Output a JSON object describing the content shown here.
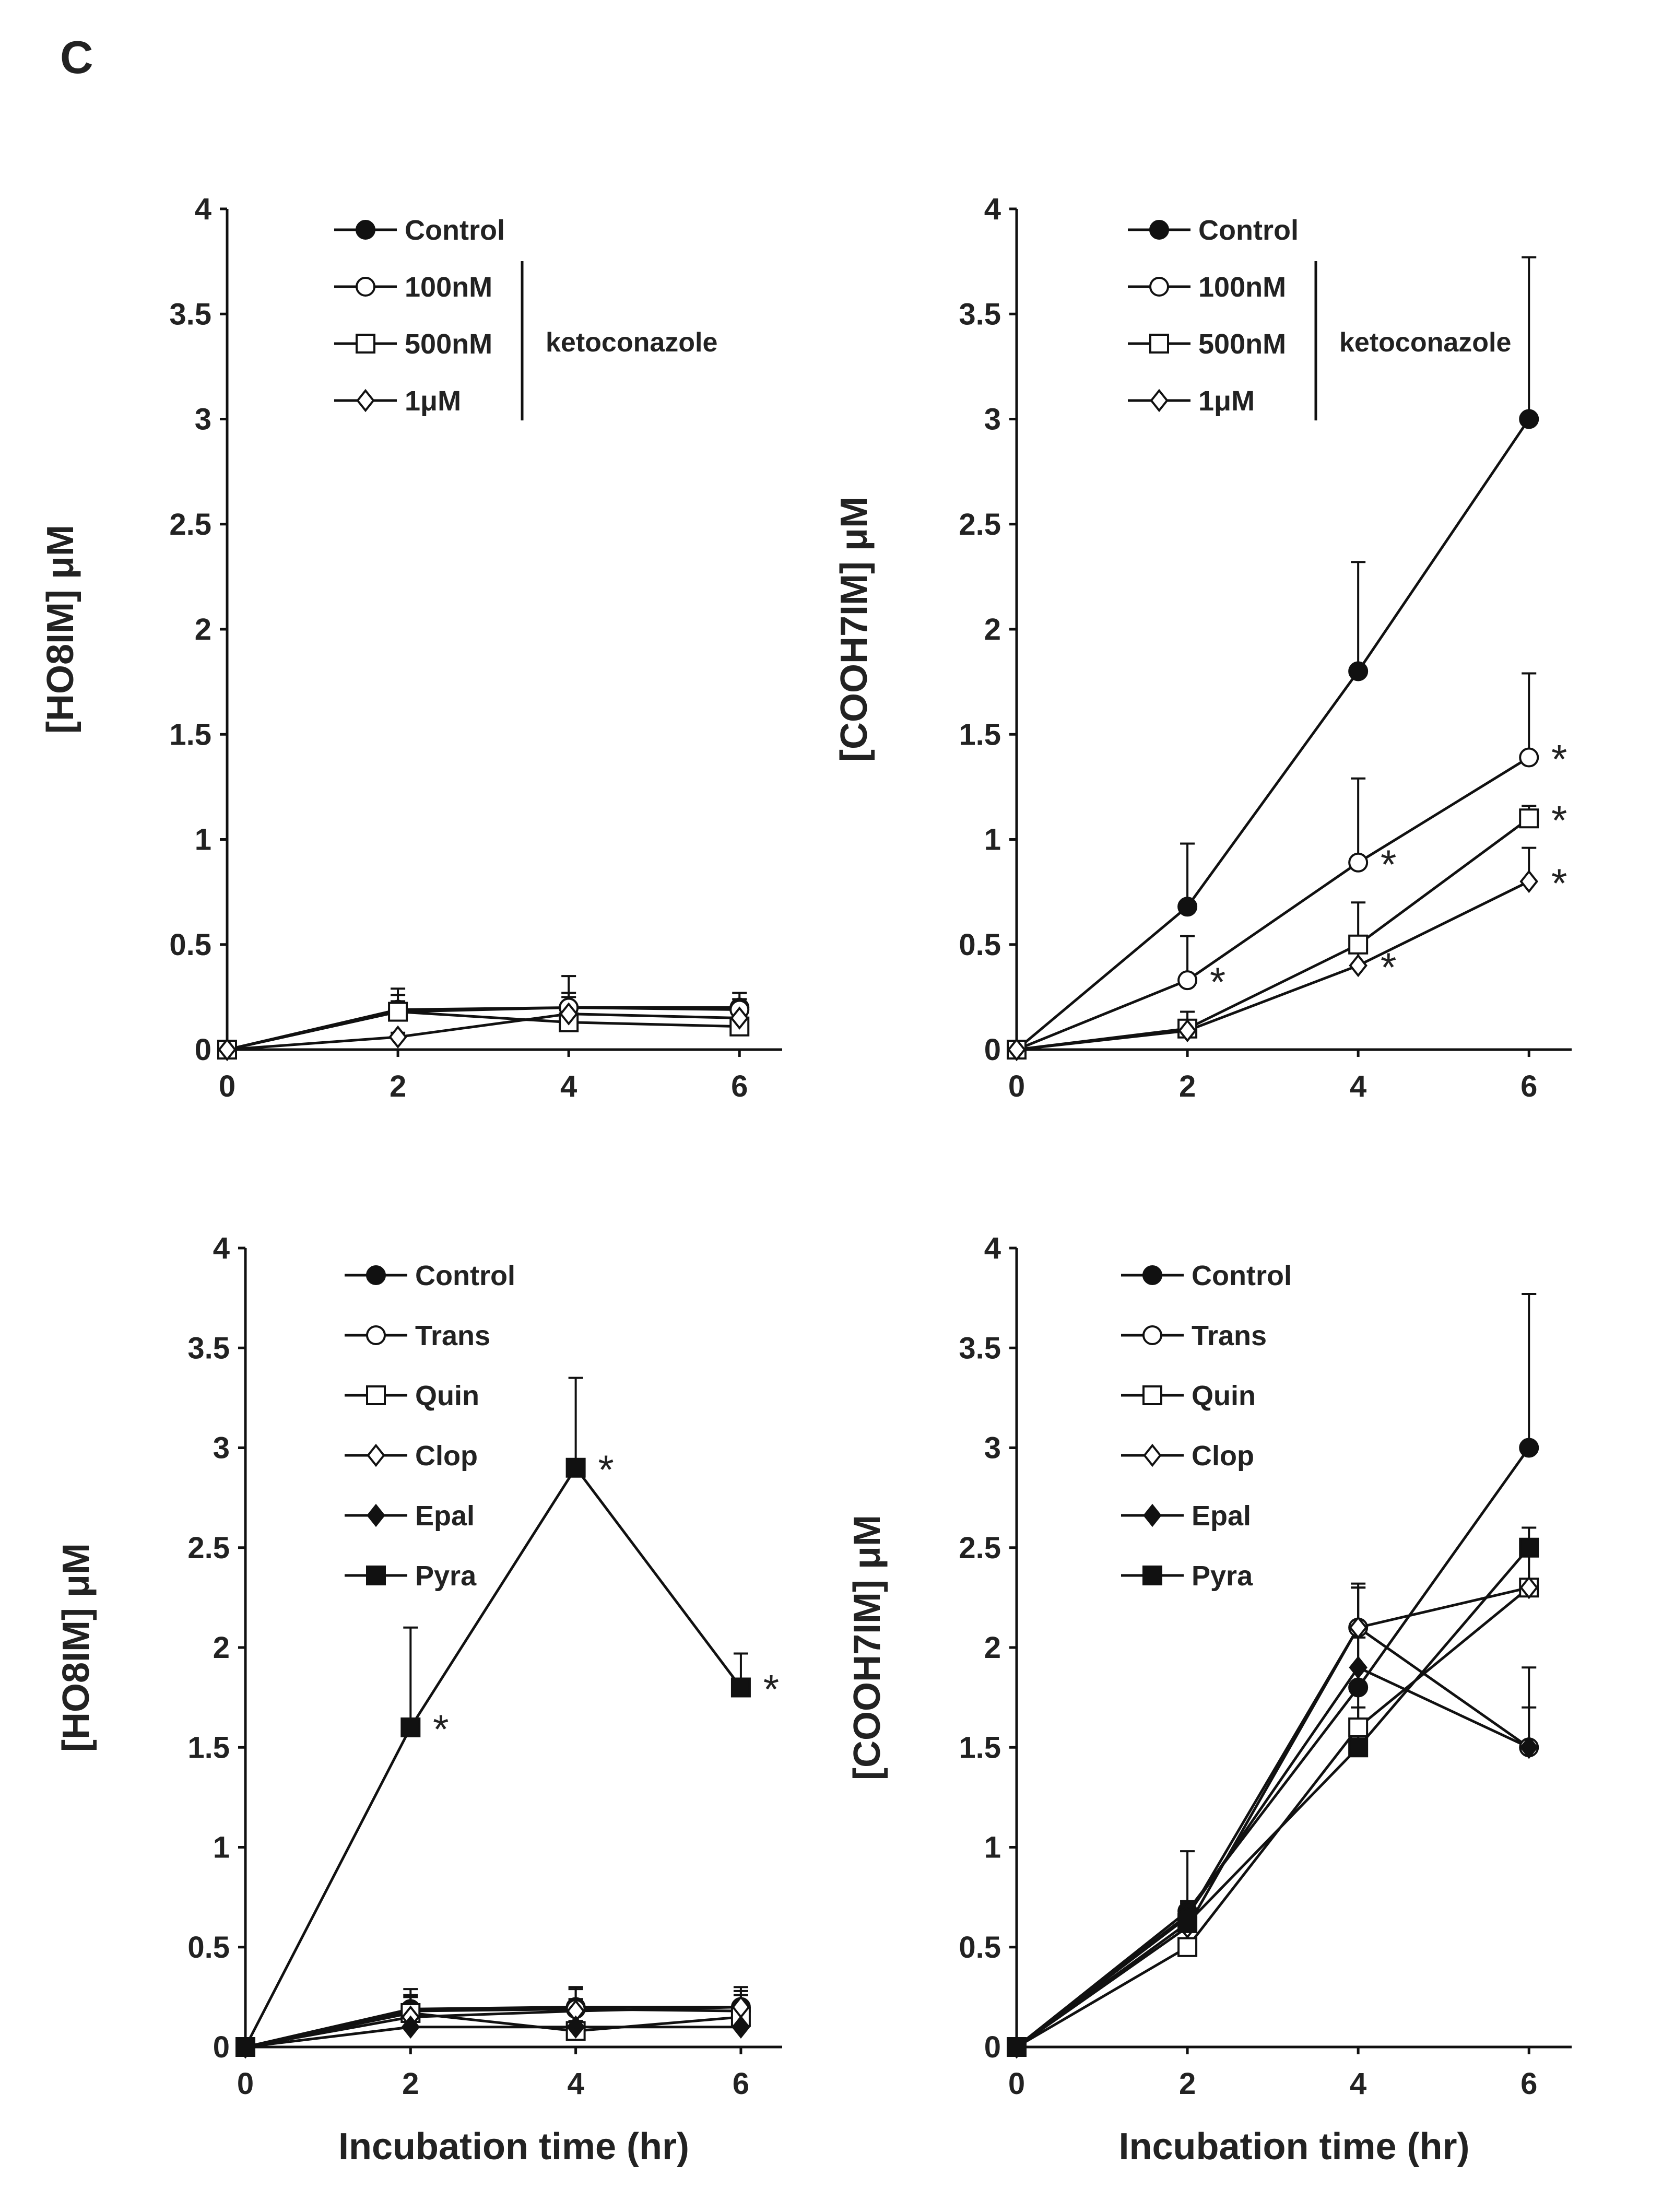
{
  "panel_letter": "C",
  "chart_data": [
    {
      "type": "line",
      "title": "",
      "xlabel": "",
      "ylabel": "[HO8IM] μM",
      "x": [
        0,
        2,
        4,
        6
      ],
      "xlim": [
        0,
        6.5
      ],
      "xticks": [
        "0",
        "2",
        "4",
        "6"
      ],
      "ylim": [
        0,
        4
      ],
      "yticks": [
        "0",
        "0.5",
        "1",
        "1.5",
        "2",
        "2.5",
        "3",
        "3.5",
        "4"
      ],
      "legend_group_label": "ketoconazole",
      "series": [
        {
          "name": "Control",
          "marker": "filled-circle",
          "values": [
            0,
            0.19,
            0.2,
            0.2
          ],
          "err": [
            0,
            0.1,
            0.15,
            0.07
          ],
          "stars": [
            false,
            false,
            false,
            false
          ]
        },
        {
          "name": "100nM",
          "marker": "open-circle",
          "values": [
            0,
            0.18,
            0.2,
            0.19
          ],
          "err": [
            0,
            0.05,
            0.05,
            0.05
          ],
          "stars": [
            false,
            false,
            false,
            false
          ]
        },
        {
          "name": "500nM",
          "marker": "open-square",
          "values": [
            0,
            0.18,
            0.13,
            0.11
          ],
          "err": [
            0,
            0.08,
            0.05,
            0.03
          ],
          "stars": [
            false,
            false,
            false,
            false
          ]
        },
        {
          "name": "1μM",
          "marker": "open-diamond",
          "values": [
            0,
            0.06,
            0.17,
            0.15
          ],
          "err": [
            0,
            0.02,
            0.1,
            0.04
          ],
          "stars": [
            false,
            false,
            false,
            false
          ]
        }
      ]
    },
    {
      "type": "line",
      "title": "",
      "xlabel": "",
      "ylabel": "[COOH7IM] μM",
      "x": [
        0,
        2,
        4,
        6
      ],
      "xlim": [
        0,
        6.5
      ],
      "xticks": [
        "0",
        "2",
        "4",
        "6"
      ],
      "ylim": [
        0,
        4
      ],
      "yticks": [
        "0",
        "0.5",
        "1",
        "1.5",
        "2",
        "2.5",
        "3",
        "3.5",
        "4"
      ],
      "legend_group_label": "ketoconazole",
      "series": [
        {
          "name": "Control",
          "marker": "filled-circle",
          "values": [
            0,
            0.68,
            1.8,
            3.0
          ],
          "err": [
            0,
            0.3,
            0.52,
            0.77
          ],
          "stars": [
            false,
            false,
            false,
            false
          ]
        },
        {
          "name": "100nM",
          "marker": "open-circle",
          "values": [
            0,
            0.33,
            0.89,
            1.39
          ],
          "err": [
            0,
            0.21,
            0.4,
            0.4
          ],
          "stars": [
            false,
            true,
            true,
            true
          ]
        },
        {
          "name": "500nM",
          "marker": "open-square",
          "values": [
            0,
            0.1,
            0.5,
            1.1
          ],
          "err": [
            0,
            0.08,
            0.2,
            0.06
          ],
          "stars": [
            false,
            false,
            false,
            true
          ]
        },
        {
          "name": "1μM",
          "marker": "open-diamond",
          "values": [
            0,
            0.09,
            0.4,
            0.8
          ],
          "err": [
            0,
            0.04,
            0.1,
            0.16
          ],
          "stars": [
            false,
            false,
            true,
            true
          ]
        }
      ]
    },
    {
      "type": "line",
      "title": "",
      "xlabel": "Incubation time (hr)",
      "ylabel": "[HO8IM] μM",
      "x": [
        0,
        2,
        4,
        6
      ],
      "xlim": [
        0,
        6.5
      ],
      "xticks": [
        "0",
        "2",
        "4",
        "6"
      ],
      "ylim": [
        0,
        4
      ],
      "yticks": [
        "0",
        "0.5",
        "1",
        "1.5",
        "2",
        "2.5",
        "3",
        "3.5",
        "4"
      ],
      "legend_group_label": "",
      "series": [
        {
          "name": "Control",
          "marker": "filled-circle",
          "values": [
            0,
            0.19,
            0.2,
            0.2
          ],
          "err": [
            0,
            0.1,
            0.1,
            0.1
          ],
          "stars": [
            false,
            false,
            false,
            false
          ]
        },
        {
          "name": "Trans",
          "marker": "open-circle",
          "values": [
            0,
            0.18,
            0.19,
            0.18
          ],
          "err": [
            0,
            0.08,
            0.1,
            0.1
          ],
          "stars": [
            false,
            false,
            false,
            false
          ]
        },
        {
          "name": "Quin",
          "marker": "open-square",
          "values": [
            0,
            0.17,
            0.08,
            0.15
          ],
          "err": [
            0,
            0.08,
            0.05,
            0.06
          ],
          "stars": [
            false,
            false,
            false,
            false
          ]
        },
        {
          "name": "Clop",
          "marker": "open-diamond",
          "values": [
            0,
            0.15,
            0.18,
            0.2
          ],
          "err": [
            0,
            0.05,
            0.06,
            0.06
          ],
          "stars": [
            false,
            false,
            false,
            false
          ]
        },
        {
          "name": "Epal",
          "marker": "filled-diamond",
          "values": [
            0,
            0.1,
            0.1,
            0.1
          ],
          "err": [
            0,
            0.03,
            0.03,
            0.03
          ],
          "stars": [
            false,
            false,
            false,
            false
          ]
        },
        {
          "name": "Pyra",
          "marker": "filled-square",
          "values": [
            0,
            1.6,
            2.9,
            1.8
          ],
          "err": [
            0,
            0.5,
            0.45,
            0.17
          ],
          "stars": [
            false,
            true,
            true,
            true
          ]
        }
      ]
    },
    {
      "type": "line",
      "title": "",
      "xlabel": "Incubation time (hr)",
      "ylabel": "[COOH7IM] μM",
      "x": [
        0,
        2,
        4,
        6
      ],
      "xlim": [
        0,
        6.5
      ],
      "xticks": [
        "0",
        "2",
        "4",
        "6"
      ],
      "ylim": [
        0,
        4
      ],
      "yticks": [
        "0",
        "0.5",
        "1",
        "1.5",
        "2",
        "2.5",
        "3",
        "3.5",
        "4"
      ],
      "legend_group_label": "",
      "series": [
        {
          "name": "Control",
          "marker": "filled-circle",
          "values": [
            0,
            0.68,
            1.8,
            3.0
          ],
          "err": [
            0,
            0.3,
            0.52,
            0.77
          ],
          "stars": [
            false,
            false,
            false,
            false
          ]
        },
        {
          "name": "Trans",
          "marker": "open-circle",
          "values": [
            0,
            0.65,
            2.1,
            1.5
          ],
          "err": [
            0,
            0.08,
            0.2,
            0.4
          ],
          "stars": [
            false,
            false,
            false,
            false
          ]
        },
        {
          "name": "Quin",
          "marker": "open-square",
          "values": [
            0,
            0.5,
            1.6,
            2.3
          ],
          "err": [
            0,
            0.08,
            0.2,
            0.2
          ],
          "stars": [
            false,
            false,
            false,
            false
          ]
        },
        {
          "name": "Clop",
          "marker": "open-diamond",
          "values": [
            0,
            0.6,
            2.1,
            2.3
          ],
          "err": [
            0,
            0.06,
            0.2,
            0.2
          ],
          "stars": [
            false,
            false,
            false,
            false
          ]
        },
        {
          "name": "Epal",
          "marker": "filled-diamond",
          "values": [
            0,
            0.66,
            1.9,
            1.5
          ],
          "err": [
            0,
            0.06,
            0.15,
            0.2
          ],
          "stars": [
            false,
            false,
            false,
            false
          ]
        },
        {
          "name": "Pyra",
          "marker": "filled-square",
          "values": [
            0,
            0.62,
            1.5,
            2.5
          ],
          "err": [
            0,
            0.08,
            0.2,
            0.1
          ],
          "stars": [
            false,
            false,
            false,
            false
          ]
        }
      ]
    }
  ]
}
